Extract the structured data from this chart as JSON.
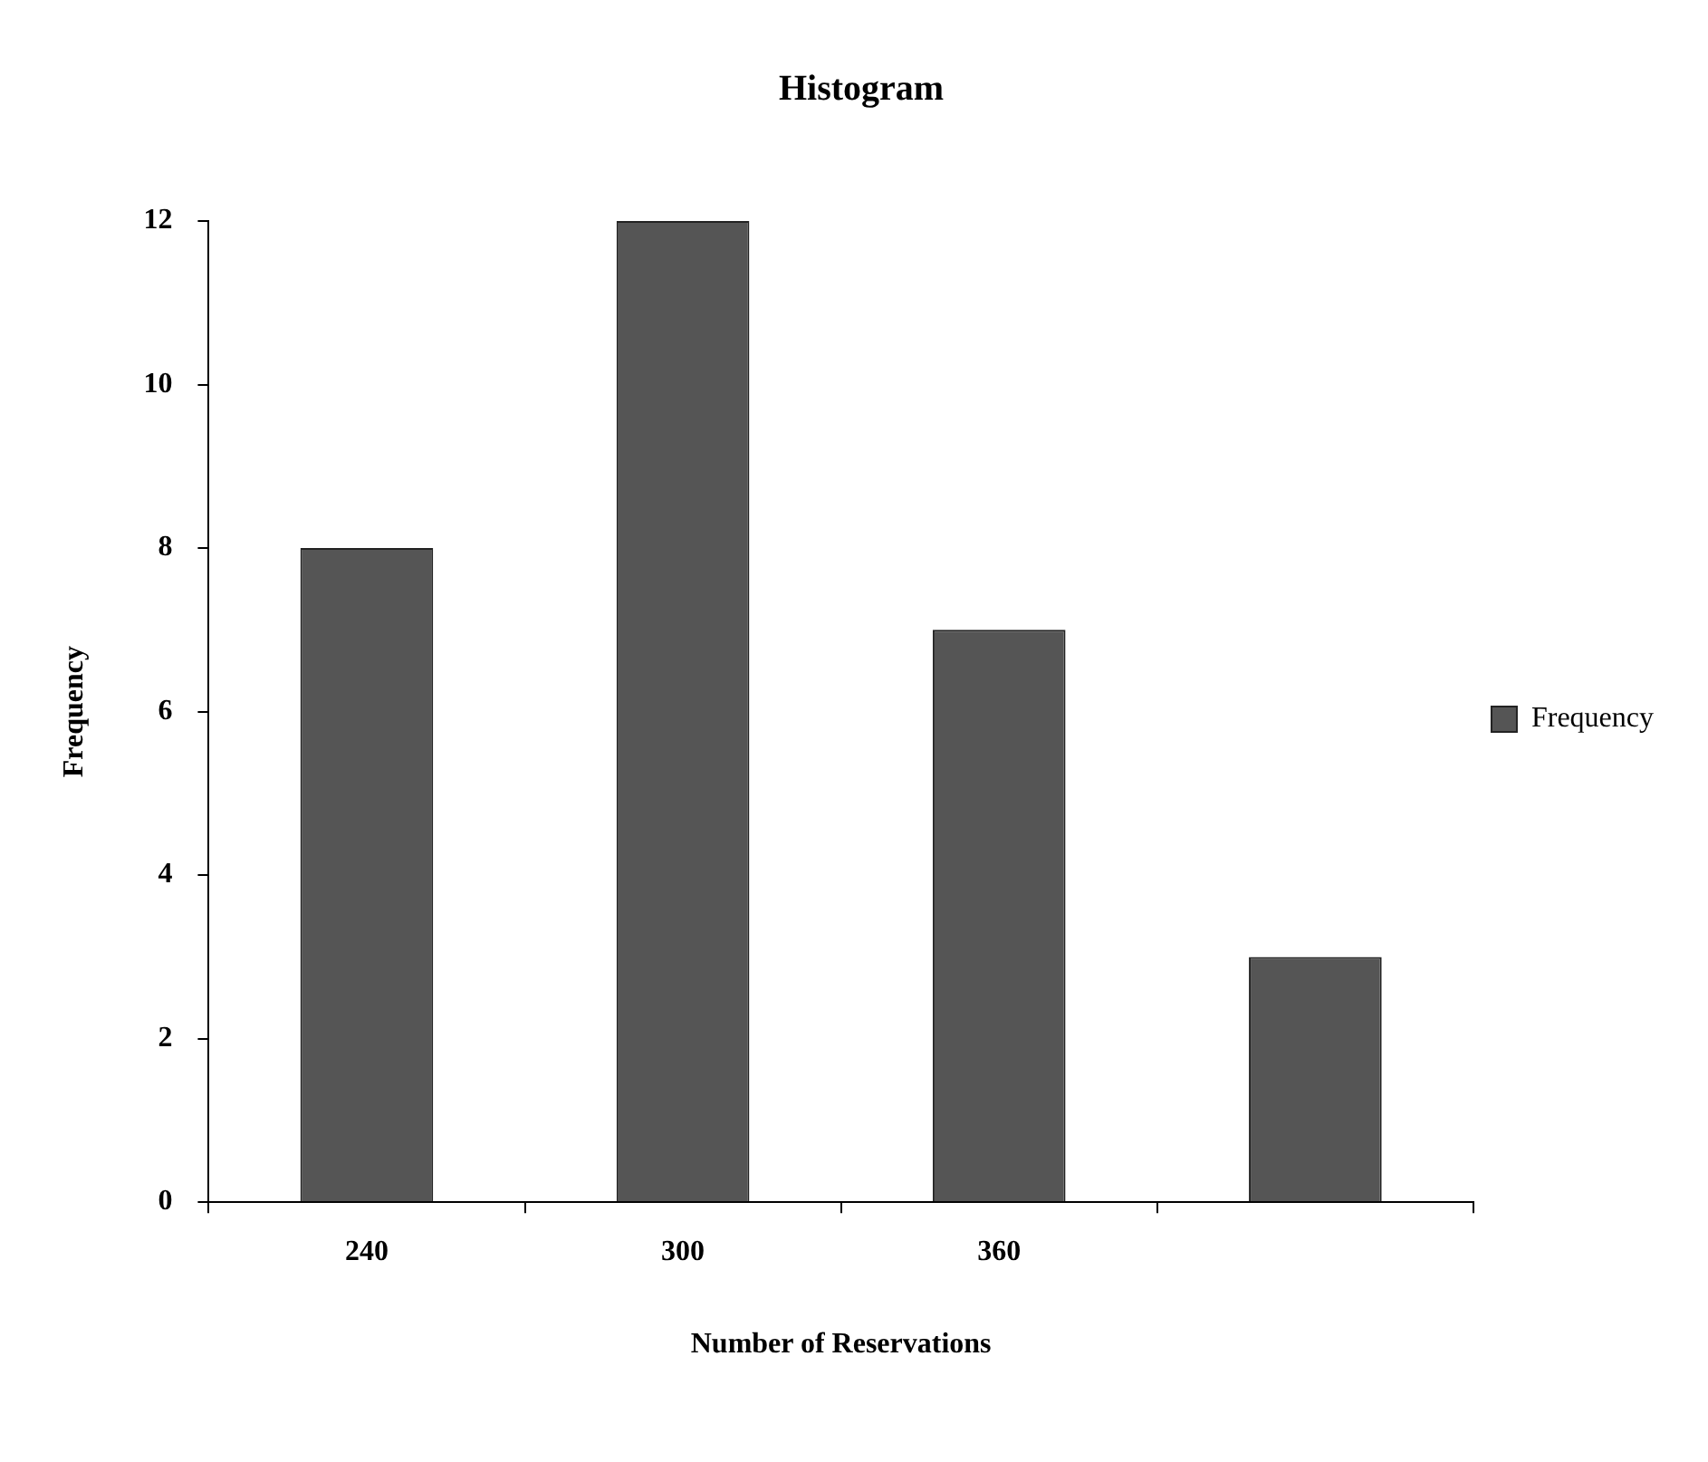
{
  "chart_data": {
    "type": "bar",
    "title": "Histogram",
    "xlabel": "Number of Reservations",
    "ylabel": "Frequency",
    "categories": [
      "240",
      "300",
      "360",
      null
    ],
    "series": [
      {
        "name": "Frequency",
        "color": "#555555",
        "values": [
          8,
          12,
          7,
          3
        ]
      }
    ],
    "ylim": [
      0,
      12
    ],
    "yticks": [
      0,
      2,
      4,
      6,
      8,
      10,
      12
    ],
    "grid": false,
    "legend": "right"
  }
}
